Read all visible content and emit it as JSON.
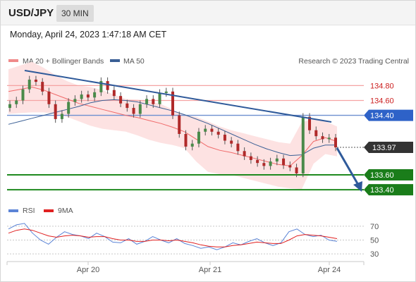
{
  "header": {
    "symbol": "USD/JPY",
    "timeframe": "30 MIN"
  },
  "datetime": "Monday, April 24, 2023 1:47:18 AM CET",
  "legend": {
    "ma20": "MA 20 + Bollinger Bands",
    "ma50": "MA 50",
    "ma20_color": "#f08a8a",
    "ma50_color": "#3a5f95"
  },
  "copyright": "Research © 2023 Trading Central",
  "colors": {
    "resistance": "#f5a3a3",
    "pivot": "#6d8fd0",
    "support": "#1f8a1f",
    "trendline": "#2f5a9a",
    "bollinger": "#fde2e2",
    "price_tag": "#333333"
  },
  "chart_data": [
    {
      "type": "line",
      "title": "",
      "ylim": [
        133.25,
        135.05
      ],
      "x_ticks": [
        "Apr 20",
        "Apr 21",
        "Apr 24"
      ],
      "series": [
        {
          "name": "MA 20 + Bollinger Bands",
          "values": [
            134.72,
            134.75,
            134.78,
            134.74,
            134.68,
            134.62,
            134.56,
            134.52,
            134.48,
            134.44,
            134.4,
            134.37,
            134.33,
            134.29,
            134.24,
            134.18,
            134.08,
            133.98,
            133.93,
            133.9,
            133.86,
            133.82,
            133.78,
            133.74,
            133.72,
            133.86,
            134.05,
            134.1,
            134.05
          ]
        },
        {
          "name": "MA 50",
          "values": [
            134.28,
            134.32,
            134.36,
            134.4,
            134.44,
            134.48,
            134.52,
            134.57,
            134.6,
            134.61,
            134.6,
            134.58,
            134.54,
            134.5,
            134.46,
            134.41,
            134.35,
            134.29,
            134.22,
            134.15,
            134.08,
            134.01,
            133.95,
            133.9,
            133.86,
            133.87,
            133.96,
            134.0,
            134.0
          ]
        }
      ],
      "levels": [
        {
          "value": 134.8,
          "label": "134.80",
          "kind": "resistance"
        },
        {
          "value": 134.6,
          "label": "134.60",
          "kind": "resistance"
        },
        {
          "value": 134.4,
          "label": "134.40",
          "kind": "pivot"
        },
        {
          "value": 133.97,
          "label": "133.97",
          "kind": "last_price"
        },
        {
          "value": 133.6,
          "label": "133.60",
          "kind": "support"
        },
        {
          "value": 133.4,
          "label": "133.40",
          "kind": "support"
        }
      ],
      "close": [
        134.55,
        134.6,
        134.75,
        134.88,
        134.85,
        134.72,
        134.55,
        134.35,
        134.42,
        134.58,
        134.62,
        134.68,
        134.64,
        134.71,
        134.86,
        134.74,
        134.66,
        134.56,
        134.5,
        134.42,
        134.55,
        134.62,
        134.55,
        134.7,
        134.72,
        134.4,
        134.15,
        133.98,
        134.02,
        134.18,
        134.22,
        134.18,
        134.14,
        134.06,
        134.02,
        133.92,
        133.85,
        133.8,
        133.76,
        133.72,
        133.78,
        133.82,
        133.73,
        133.7,
        133.62,
        134.38,
        134.2,
        134.12,
        134.08,
        134.1,
        133.97
      ]
    },
    {
      "type": "line",
      "title": "",
      "ylim": [
        25,
        78
      ],
      "y_ticks": [
        70,
        50,
        30
      ],
      "series": [
        {
          "name": "RSI",
          "values": [
            66,
            72,
            74,
            60,
            50,
            44,
            54,
            62,
            58,
            56,
            52,
            60,
            55,
            47,
            46,
            52,
            44,
            48,
            55,
            50,
            46,
            52,
            45,
            42,
            38,
            40,
            36,
            40,
            46,
            43,
            48,
            52,
            46,
            42,
            46,
            62,
            66,
            58,
            55,
            57,
            50,
            48
          ]
        },
        {
          "name": "9MA",
          "values": [
            60,
            64,
            66,
            64,
            60,
            56,
            54,
            56,
            57,
            56,
            54,
            55,
            55,
            52,
            50,
            50,
            48,
            48,
            50,
            50,
            49,
            50,
            48,
            46,
            43,
            41,
            40,
            40,
            42,
            43,
            45,
            47,
            46,
            45,
            45,
            50,
            56,
            58,
            57,
            56,
            54,
            52
          ]
        }
      ]
    }
  ]
}
